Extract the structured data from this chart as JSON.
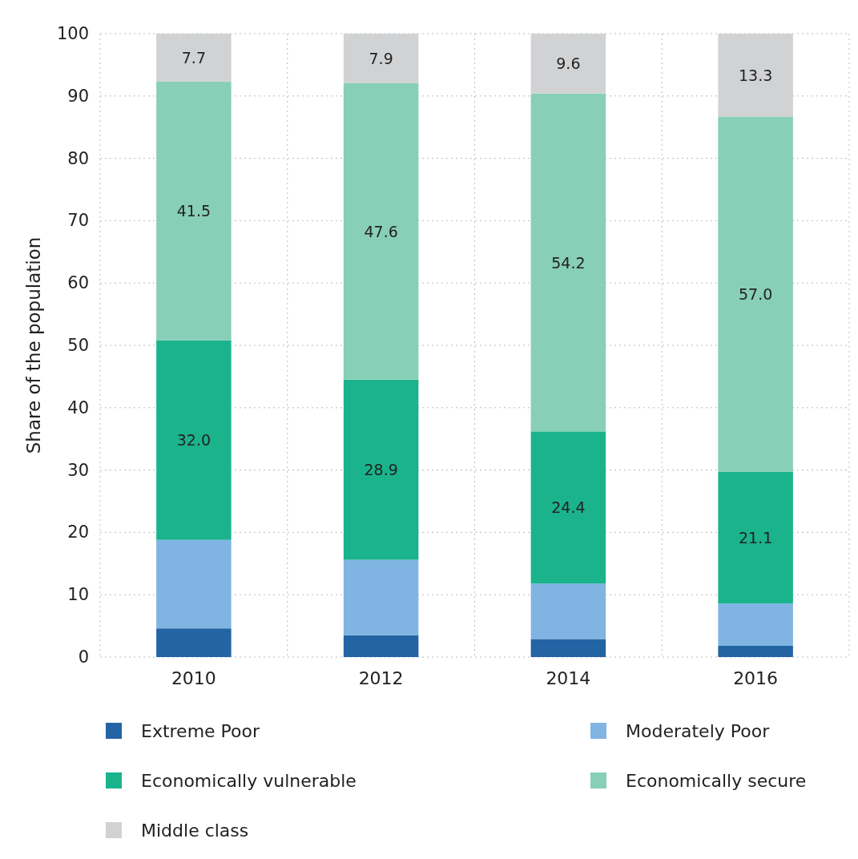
{
  "chart_data": {
    "type": "bar",
    "stacked": true,
    "ylabel": "Share of the population",
    "categories": [
      "2010",
      "2012",
      "2014",
      "2016"
    ],
    "series": [
      {
        "name": "Extreme Poor",
        "color": "#2364a4",
        "values": [
          4.6,
          3.5,
          2.9,
          1.8
        ]
      },
      {
        "name": "Moderately Poor",
        "color": "#80b5e3",
        "values": [
          14.2,
          12.1,
          8.9,
          6.8
        ]
      },
      {
        "name": "Economically vulnerable",
        "color": "#1bb38c",
        "values": [
          32.0,
          28.9,
          24.4,
          21.1
        ],
        "value_labels": [
          "32.0",
          "28.9",
          "24.4",
          "21.1"
        ]
      },
      {
        "name": "Economically secure",
        "color": "#88cfb7",
        "values": [
          41.5,
          47.6,
          54.2,
          57.0
        ],
        "value_labels": [
          "41.5",
          "47.6",
          "54.2",
          "57.0"
        ]
      },
      {
        "name": "Middle class",
        "color": "#d1d2d4",
        "values": [
          7.7,
          7.9,
          9.6,
          13.3
        ],
        "value_labels": [
          "7.7",
          "7.9",
          "9.6",
          "13.3"
        ]
      }
    ],
    "ylim": [
      0,
      100
    ],
    "yticks": [
      0,
      10,
      20,
      30,
      40,
      50,
      60,
      70,
      80,
      90,
      100
    ],
    "grid": true,
    "legend": "bottom"
  }
}
